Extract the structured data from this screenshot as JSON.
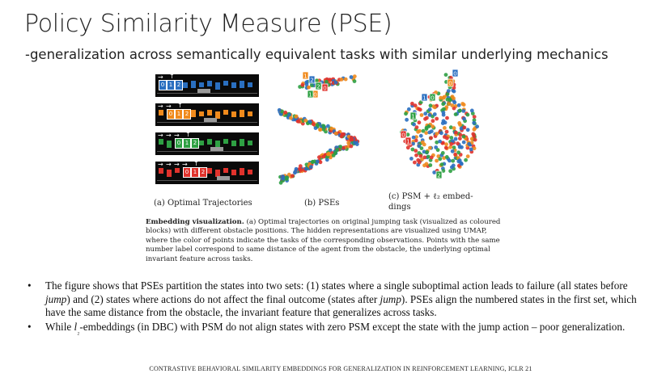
{
  "slide": {
    "title": "Policy Similarity Measure (PSE)",
    "subtitle": "-generalization across semantically equivalent tasks with similar underlying mechanics"
  },
  "figure": {
    "captions": {
      "a": "(a) Optimal Trajectories",
      "b": "(b) PSEs",
      "c_line1": "(c)  PSM  +  ℓ₂  embed-",
      "c_line2": "dings"
    },
    "trajectory_digits": [
      "0",
      "1",
      "2"
    ],
    "trajectory_colors": [
      "#2a6fc0",
      "#f08a1c",
      "#2ea043",
      "#e0322c"
    ],
    "caption_lead": "Embedding visualization.",
    "caption_body": "(a) Optimal trajectories on original jumping task (visualized as coloured blocks) with different obstacle positions. The hidden representations are visualized using UMAP, where the color of points indicate the tasks of the corresponding observations. Points with the same number label correspond to same distance of the agent from the obstacle, the underlying optimal invariant feature across tasks."
  },
  "bullets": [
    {
      "parts": [
        {
          "t": "The figure shows that PSEs partition the states into two sets: (1) states where a single suboptimal action leads to failure (all states before "
        },
        {
          "t": "jump",
          "i": true
        },
        {
          "t": ") and (2) states where actions do not affect the final outcome (states after "
        },
        {
          "t": "jump",
          "i": true
        },
        {
          "t": "). PSEs align the numbered states in the first set, which have the same distance from the obstacle, the invariant feature that generalizes across tasks."
        }
      ]
    },
    {
      "parts": [
        {
          "t": "While "
        },
        {
          "t": "l",
          "i": true
        },
        {
          "t": "₂",
          "sub": true
        },
        {
          "t": "-embeddings (in DBC) with PSM do not align states with zero PSM except the state with the jump action – poor generalization."
        }
      ]
    }
  ],
  "bullet_symbol": "•",
  "footer": "CONTRASTIVE BEHAVIORAL SIMILARITY EMBEDDINGS FOR GENERALIZATION IN REINFORCEMENT LEARNING, ICLR 21"
}
